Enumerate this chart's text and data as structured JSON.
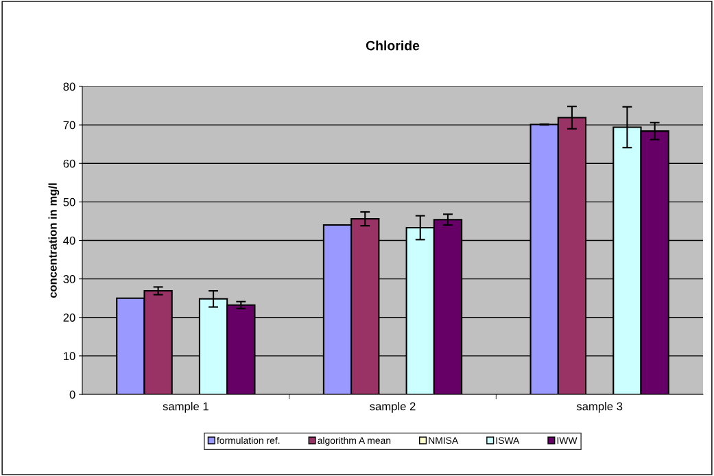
{
  "chart_data": {
    "type": "bar",
    "title": "Chloride",
    "ylabel": "concentration in mg/l",
    "categories": [
      "sample 1",
      "sample 2",
      "sample 3"
    ],
    "series": [
      {
        "name": "formulation ref.",
        "color": "#9999ff",
        "values": [
          25,
          44,
          70.1
        ],
        "errors": [
          null,
          null,
          0.1
        ]
      },
      {
        "name": "algorithm A mean",
        "color": "#993366",
        "values": [
          26.9,
          45.6,
          71.9
        ],
        "errors": [
          1,
          1.8,
          2.9
        ]
      },
      {
        "name": "NMISA",
        "color": "#ffffcc",
        "values": [
          null,
          null,
          null
        ]
      },
      {
        "name": "ISWA",
        "color": "#ccffff",
        "values": [
          24.8,
          43.3,
          69.4
        ],
        "errors": [
          2.1,
          3.1,
          5.3
        ]
      },
      {
        "name": "IWW",
        "color": "#660066",
        "values": [
          23.2,
          45.4,
          68.4
        ],
        "errors": [
          0.9,
          1.4,
          2.2
        ]
      }
    ],
    "ylim": [
      0,
      80
    ],
    "yticks": [
      0,
      10,
      20,
      30,
      40,
      50,
      60,
      70,
      80
    ],
    "grid": "y",
    "legend": "bottom"
  }
}
